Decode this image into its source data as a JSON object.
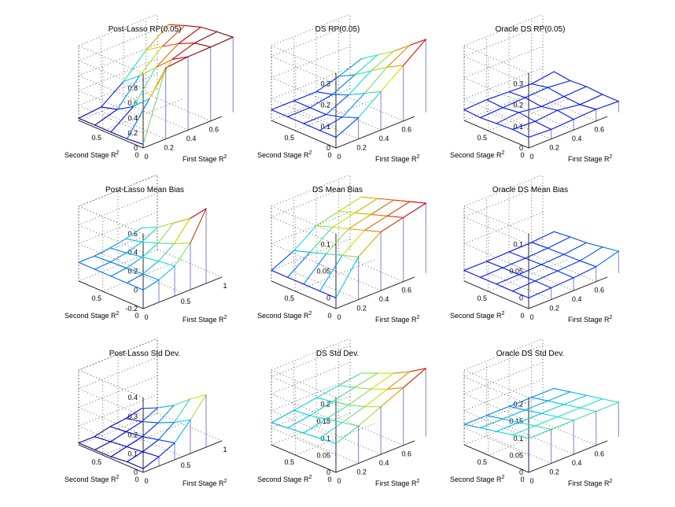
{
  "figure": {
    "background": "#ffffff"
  },
  "chart_data": [
    {
      "type": "surface",
      "title": "Post-Lasso RP(0.05)",
      "xlabel": "First Stage R",
      "ylabel": "Second Stage R",
      "label_superscript": "2",
      "x_values": [
        0,
        0.2,
        0.4,
        0.6,
        0.8
      ],
      "y_values": [
        0,
        0.2,
        0.4,
        0.6,
        0.8
      ],
      "xlim": [
        0,
        0.7
      ],
      "ylim": [
        0,
        0.8
      ],
      "zlim": [
        0,
        1
      ],
      "x_ticks": [
        "0",
        "0.2",
        "0.4",
        "0.6"
      ],
      "y_ticks": [
        "0",
        "0.5"
      ],
      "z_ticks": [
        "0",
        "0.2",
        "0.4",
        "0.6",
        "0.8"
      ],
      "z": [
        [
          0.05,
          0.95,
          0.98,
          0.99,
          1.0
        ],
        [
          0.03,
          0.45,
          0.85,
          0.95,
          0.98
        ],
        [
          0.03,
          0.25,
          0.65,
          0.85,
          0.95
        ],
        [
          0.03,
          0.12,
          0.45,
          0.72,
          0.88
        ],
        [
          0.03,
          0.06,
          0.28,
          0.58,
          0.8
        ]
      ]
    },
    {
      "type": "surface",
      "title": "DS RP(0.05)",
      "xlabel": "First Stage R",
      "ylabel": "Second Stage R",
      "label_superscript": "2",
      "x_values": [
        0,
        0.2,
        0.4,
        0.6,
        0.8
      ],
      "y_values": [
        0,
        0.2,
        0.4,
        0.6,
        0.8
      ],
      "xlim": [
        0,
        0.7
      ],
      "ylim": [
        0,
        0.8
      ],
      "zlim": [
        0,
        0.35
      ],
      "x_ticks": [
        "0",
        "0.2",
        "0.4",
        "0.6"
      ],
      "y_ticks": [
        "0",
        "0.5"
      ],
      "z_ticks": [
        "0",
        "0.1",
        "0.2",
        "0.3"
      ],
      "z": [
        [
          0.05,
          0.1,
          0.18,
          0.26,
          0.34
        ],
        [
          0.05,
          0.07,
          0.14,
          0.22,
          0.28
        ],
        [
          0.05,
          0.05,
          0.1,
          0.17,
          0.22
        ],
        [
          0.05,
          0.05,
          0.07,
          0.12,
          0.17
        ],
        [
          0.05,
          0.05,
          0.05,
          0.08,
          0.12
        ]
      ]
    },
    {
      "type": "surface",
      "title": "Oracle DS RP(0.05)",
      "xlabel": "First Stage R",
      "ylabel": "Second Stage R",
      "label_superscript": "2",
      "x_values": [
        0,
        0.2,
        0.4,
        0.6,
        0.8
      ],
      "y_values": [
        0,
        0.2,
        0.4,
        0.6,
        0.8
      ],
      "xlim": [
        0,
        0.7
      ],
      "ylim": [
        0,
        0.8
      ],
      "zlim": [
        0,
        0.35
      ],
      "x_ticks": [
        "0",
        "0.2",
        "0.4",
        "0.6"
      ],
      "y_ticks": [
        "0",
        "0.5"
      ],
      "z_ticks": [
        "0",
        "0.1",
        "0.2",
        "0.3"
      ],
      "z": [
        [
          0.05,
          0.045,
          0.05,
          0.055,
          0.05
        ],
        [
          0.055,
          0.05,
          0.06,
          0.045,
          0.05
        ],
        [
          0.05,
          0.06,
          0.045,
          0.05,
          0.055
        ],
        [
          0.045,
          0.05,
          0.055,
          0.06,
          0.05
        ],
        [
          0.05,
          0.055,
          0.05,
          0.045,
          0.06
        ]
      ]
    },
    {
      "type": "surface",
      "title": "Post-Lasso Mean Bias",
      "xlabel": "First Stage R",
      "ylabel": "Second Stage R",
      "label_superscript": "2",
      "x_values": [
        0,
        0.2,
        0.4,
        0.6,
        0.8
      ],
      "y_values": [
        0,
        0.2,
        0.4,
        0.6,
        0.8
      ],
      "xlim": [
        0,
        1
      ],
      "ylim": [
        0,
        0.8
      ],
      "zlim": [
        -0.2,
        0.6
      ],
      "x_ticks": [
        "0",
        "0.5",
        "1"
      ],
      "y_ticks": [
        "0",
        "0.5"
      ],
      "z_ticks": [
        "-0.2",
        "0",
        "0.2",
        "0.4",
        "0.6"
      ],
      "z": [
        [
          0.0,
          0.04,
          0.12,
          0.3,
          0.6
        ],
        [
          0.0,
          0.03,
          0.1,
          0.22,
          0.42
        ],
        [
          0.0,
          0.02,
          0.07,
          0.15,
          0.3
        ],
        [
          0.0,
          0.01,
          0.04,
          0.09,
          0.18
        ],
        [
          0.0,
          0.0,
          0.02,
          0.05,
          0.1
        ]
      ]
    },
    {
      "type": "surface",
      "title": "DS Mean Bias",
      "xlabel": "First Stage R",
      "ylabel": "Second Stage R",
      "label_superscript": "2",
      "x_values": [
        0,
        0.2,
        0.4,
        0.6,
        0.8
      ],
      "y_values": [
        0,
        0.2,
        0.4,
        0.6,
        0.8
      ],
      "xlim": [
        0,
        0.7
      ],
      "ylim": [
        0,
        0.8
      ],
      "zlim": [
        -0.02,
        0.12
      ],
      "x_ticks": [
        "0",
        "0.2",
        "0.4",
        "0.6"
      ],
      "y_ticks": [
        "0",
        "0.5"
      ],
      "z_ticks": [
        "0",
        "0.05",
        "0.1"
      ],
      "z": [
        [
          0.0,
          0.06,
          0.09,
          0.1,
          0.11
        ],
        [
          0.0,
          0.05,
          0.08,
          0.09,
          0.1
        ],
        [
          0.0,
          0.04,
          0.07,
          0.08,
          0.09
        ],
        [
          0.0,
          0.03,
          0.06,
          0.07,
          0.08
        ],
        [
          0.0,
          0.02,
          0.05,
          0.06,
          0.07
        ]
      ]
    },
    {
      "type": "surface",
      "title": "Oracle DS Mean Bias",
      "xlabel": "First Stage R",
      "ylabel": "Second Stage R",
      "label_superscript": "2",
      "x_values": [
        0,
        0.2,
        0.4,
        0.6,
        0.8
      ],
      "y_values": [
        0,
        0.2,
        0.4,
        0.6,
        0.8
      ],
      "xlim": [
        0,
        0.7
      ],
      "ylim": [
        0,
        0.8
      ],
      "zlim": [
        -0.02,
        0.12
      ],
      "x_ticks": [
        "0",
        "0.2",
        "0.4",
        "0.6"
      ],
      "y_ticks": [
        "0",
        "0.5"
      ],
      "z_ticks": [
        "0",
        "0.05",
        "0.1"
      ],
      "z": [
        [
          0.0,
          0.002,
          0.004,
          0.008,
          0.02
        ],
        [
          0.0,
          0.002,
          0.004,
          0.006,
          0.015
        ],
        [
          0.0,
          0.001,
          0.003,
          0.005,
          0.01
        ],
        [
          0.0,
          0.001,
          0.002,
          0.004,
          0.008
        ],
        [
          0.0,
          0.0,
          0.001,
          0.002,
          0.005
        ]
      ]
    },
    {
      "type": "surface",
      "title": "Post-Lasso Std Dev.",
      "xlabel": "First Stage R",
      "ylabel": "Second Stage R",
      "label_superscript": "2",
      "x_values": [
        0,
        0.2,
        0.4,
        0.6,
        0.8
      ],
      "y_values": [
        0,
        0.2,
        0.4,
        0.6,
        0.8
      ],
      "xlim": [
        0,
        1
      ],
      "ylim": [
        0,
        0.8
      ],
      "zlim": [
        0,
        0.4
      ],
      "x_ticks": [
        "0",
        "0.5",
        "1"
      ],
      "y_ticks": [
        "0",
        "0.5"
      ],
      "z_ticks": [
        "0",
        "0.1",
        "0.2",
        "0.3",
        "0.4"
      ],
      "z": [
        [
          0.02,
          0.05,
          0.09,
          0.18,
          0.28
        ],
        [
          0.02,
          0.04,
          0.07,
          0.13,
          0.22
        ],
        [
          0.01,
          0.03,
          0.05,
          0.09,
          0.15
        ],
        [
          0.01,
          0.02,
          0.04,
          0.06,
          0.1
        ],
        [
          0.01,
          0.01,
          0.03,
          0.04,
          0.06
        ]
      ]
    },
    {
      "type": "surface",
      "title": "DS Std Dev.",
      "xlabel": "First Stage R",
      "ylabel": "Second Stage R",
      "label_superscript": "2",
      "x_values": [
        0,
        0.2,
        0.4,
        0.6,
        0.8
      ],
      "y_values": [
        0,
        0.2,
        0.4,
        0.6,
        0.8
      ],
      "xlim": [
        0,
        0.7
      ],
      "ylim": [
        0,
        0.8
      ],
      "zlim": [
        0,
        0.22
      ],
      "x_ticks": [
        "0",
        "0.2",
        "0.4",
        "0.6"
      ],
      "y_ticks": [
        "0",
        "0.5"
      ],
      "z_ticks": [
        "0",
        "0.05",
        "0.1",
        "0.15",
        "0.2"
      ],
      "z": [
        [
          0.085,
          0.11,
          0.14,
          0.17,
          0.2
        ],
        [
          0.08,
          0.1,
          0.12,
          0.145,
          0.17
        ],
        [
          0.075,
          0.09,
          0.105,
          0.125,
          0.145
        ],
        [
          0.07,
          0.08,
          0.095,
          0.11,
          0.125
        ],
        [
          0.065,
          0.075,
          0.085,
          0.095,
          0.105
        ]
      ]
    },
    {
      "type": "surface",
      "title": "Oracle DS Std Dev.",
      "xlabel": "First Stage R",
      "ylabel": "Second Stage R",
      "label_superscript": "2",
      "x_values": [
        0,
        0.2,
        0.4,
        0.6,
        0.8
      ],
      "y_values": [
        0,
        0.2,
        0.4,
        0.6,
        0.8
      ],
      "xlim": [
        0,
        0.7
      ],
      "ylim": [
        0,
        0.8
      ],
      "zlim": [
        0,
        0.22
      ],
      "x_ticks": [
        "0",
        "0.2",
        "0.4",
        "0.6"
      ],
      "y_ticks": [
        "0",
        "0.5"
      ],
      "z_ticks": [
        "0",
        "0.05",
        "0.1",
        "0.15",
        "0.2"
      ],
      "z": [
        [
          0.1,
          0.1,
          0.1,
          0.1,
          0.1
        ],
        [
          0.09,
          0.09,
          0.09,
          0.09,
          0.09
        ],
        [
          0.08,
          0.08,
          0.08,
          0.08,
          0.08
        ],
        [
          0.07,
          0.07,
          0.07,
          0.07,
          0.07
        ],
        [
          0.06,
          0.06,
          0.06,
          0.06,
          0.06
        ]
      ]
    }
  ]
}
